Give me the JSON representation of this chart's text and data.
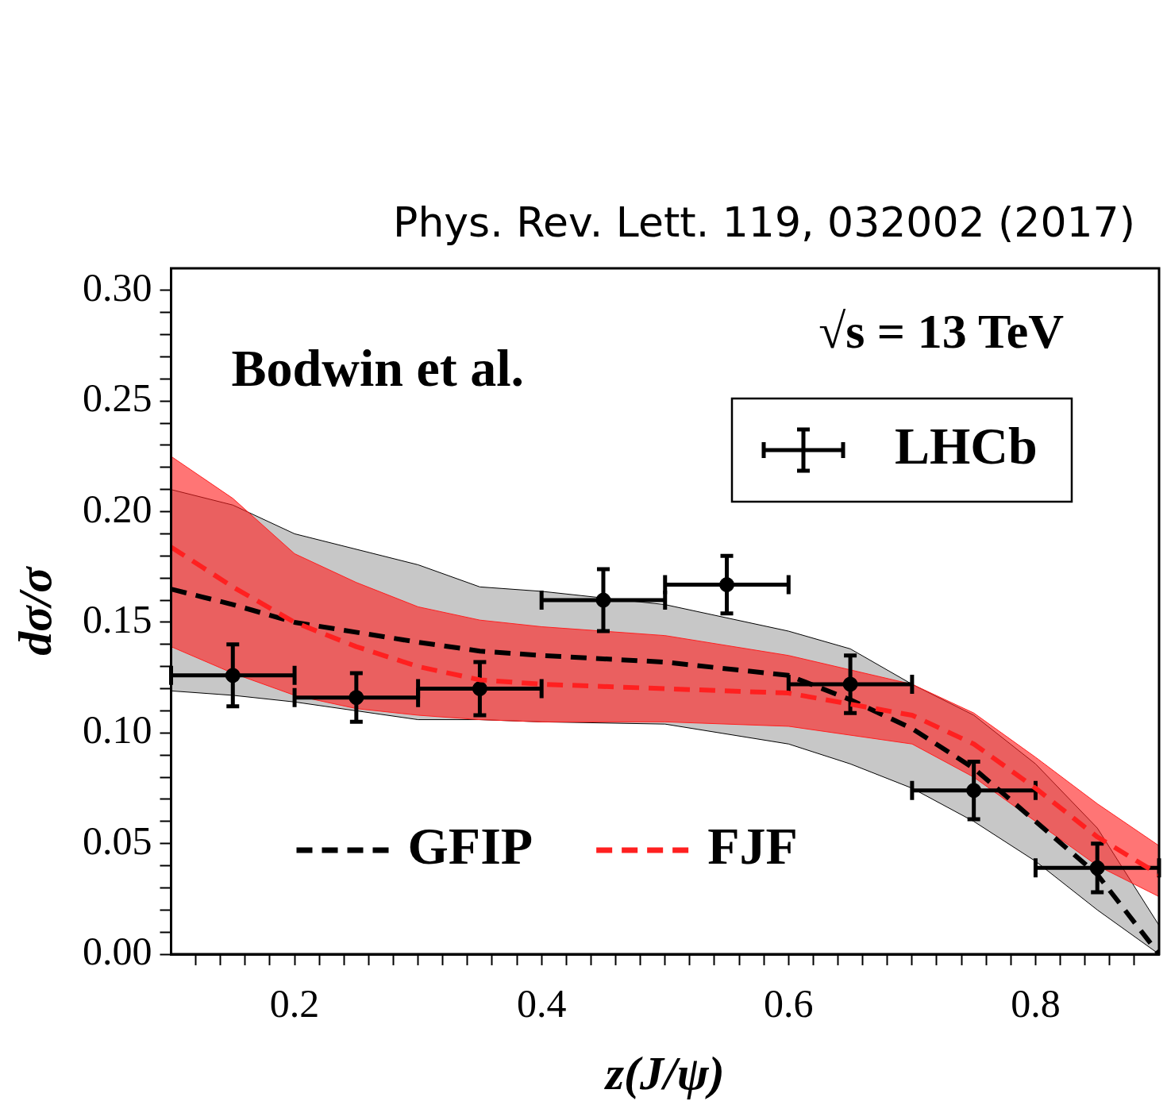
{
  "chart_data": {
    "type": "scatter",
    "xlabel": "z(J/ψ)",
    "ylabel": "dσ/σ",
    "annotations": [
      "Phys. Rev. Lett. 119, 032002 (2017)",
      "Bodwin et al.",
      "√s = 13 TeV"
    ],
    "xlim": [
      0.1,
      0.9
    ],
    "ylim": [
      0,
      0.31
    ],
    "xticks": [
      {
        "value": 0.12,
        "label": null
      },
      {
        "value": 0.14,
        "label": null
      },
      {
        "value": 0.16,
        "label": null
      },
      {
        "value": 0.18,
        "label": null
      },
      {
        "value": 0.2,
        "label": "0.2"
      },
      {
        "value": 0.22,
        "label": null
      },
      {
        "value": 0.24,
        "label": null
      },
      {
        "value": 0.26,
        "label": null
      },
      {
        "value": 0.28,
        "label": null
      },
      {
        "value": 0.3,
        "label": null
      },
      {
        "value": 0.32,
        "label": null
      },
      {
        "value": 0.34,
        "label": null
      },
      {
        "value": 0.36,
        "label": null
      },
      {
        "value": 0.38,
        "label": null
      },
      {
        "value": 0.4,
        "label": "0.4"
      },
      {
        "value": 0.42,
        "label": null
      },
      {
        "value": 0.44,
        "label": null
      },
      {
        "value": 0.46,
        "label": null
      },
      {
        "value": 0.48,
        "label": null
      },
      {
        "value": 0.5,
        "label": null
      },
      {
        "value": 0.52,
        "label": null
      },
      {
        "value": 0.54,
        "label": null
      },
      {
        "value": 0.56,
        "label": null
      },
      {
        "value": 0.58,
        "label": null
      },
      {
        "value": 0.6,
        "label": "0.6"
      },
      {
        "value": 0.62,
        "label": null
      },
      {
        "value": 0.64,
        "label": null
      },
      {
        "value": 0.66,
        "label": null
      },
      {
        "value": 0.68,
        "label": null
      },
      {
        "value": 0.7,
        "label": null
      },
      {
        "value": 0.72,
        "label": null
      },
      {
        "value": 0.74,
        "label": null
      },
      {
        "value": 0.76,
        "label": null
      },
      {
        "value": 0.78,
        "label": null
      },
      {
        "value": 0.8,
        "label": "0.8"
      },
      {
        "value": 0.82,
        "label": null
      },
      {
        "value": 0.84,
        "label": null
      },
      {
        "value": 0.86,
        "label": null
      },
      {
        "value": 0.88,
        "label": null
      }
    ],
    "yticks": [
      {
        "value": 0,
        "label": "0.00"
      },
      {
        "value": 0.01,
        "label": null
      },
      {
        "value": 0.02,
        "label": null
      },
      {
        "value": 0.03,
        "label": null
      },
      {
        "value": 0.04,
        "label": null
      },
      {
        "value": 0.05,
        "label": "0.05"
      },
      {
        "value": 0.06,
        "label": null
      },
      {
        "value": 0.07,
        "label": null
      },
      {
        "value": 0.08,
        "label": null
      },
      {
        "value": 0.09,
        "label": null
      },
      {
        "value": 0.1,
        "label": "0.10"
      },
      {
        "value": 0.11,
        "label": null
      },
      {
        "value": 0.12,
        "label": null
      },
      {
        "value": 0.13,
        "label": null
      },
      {
        "value": 0.14,
        "label": null
      },
      {
        "value": 0.15,
        "label": "0.15"
      },
      {
        "value": 0.16,
        "label": null
      },
      {
        "value": 0.17,
        "label": null
      },
      {
        "value": 0.18,
        "label": null
      },
      {
        "value": 0.19,
        "label": null
      },
      {
        "value": 0.2,
        "label": "0.20"
      },
      {
        "value": 0.21,
        "label": null
      },
      {
        "value": 0.22,
        "label": null
      },
      {
        "value": 0.23,
        "label": null
      },
      {
        "value": 0.24,
        "label": null
      },
      {
        "value": 0.25,
        "label": "0.25"
      },
      {
        "value": 0.26,
        "label": null
      },
      {
        "value": 0.27,
        "label": null
      },
      {
        "value": 0.28,
        "label": null
      },
      {
        "value": 0.29,
        "label": null
      },
      {
        "value": 0.3,
        "label": "0.30"
      }
    ],
    "legend": "bottom right",
    "series": [
      {
        "name": "GFIP",
        "type": "line",
        "color": "#000000",
        "line_style": "dashed",
        "x": [
          0.1,
          0.15,
          0.2,
          0.3,
          0.35,
          0.4,
          0.5,
          0.6,
          0.65,
          0.7,
          0.75,
          0.8,
          0.85,
          0.9
        ],
        "values": [
          0.165,
          0.158,
          0.15,
          0.141,
          0.137,
          0.135,
          0.132,
          0.126,
          0.115,
          0.102,
          0.084,
          0.06,
          0.036,
          0.0
        ],
        "upper": [
          0.21,
          0.203,
          0.19,
          0.176,
          0.166,
          0.164,
          0.158,
          0.146,
          0.138,
          0.122,
          0.108,
          0.086,
          0.057,
          0.013
        ],
        "lower": [
          0.119,
          0.117,
          0.114,
          0.106,
          0.106,
          0.105,
          0.104,
          0.095,
          0.086,
          0.075,
          0.06,
          0.042,
          0.02,
          0.0
        ]
      },
      {
        "name": "LHCb",
        "type": "scatter",
        "color": "#000000",
        "marker": "circle",
        "x": [
          0.15,
          0.25,
          0.35,
          0.45,
          0.55,
          0.65,
          0.75,
          0.85
        ],
        "values": [
          0.126,
          0.116,
          0.12,
          0.16,
          0.167,
          0.122,
          0.074,
          0.039
        ],
        "errors": [
          [
            0.112,
            0.14
          ],
          [
            0.105,
            0.127
          ],
          [
            0.108,
            0.132
          ],
          [
            0.146,
            0.174
          ],
          [
            0.154,
            0.18
          ],
          [
            0.109,
            0.135
          ],
          [
            0.061,
            0.087
          ],
          [
            0.028,
            0.05
          ]
        ],
        "xerrors": [
          0.05,
          0.05,
          0.05,
          0.05,
          0.05,
          0.05,
          0.05,
          0.05
        ]
      },
      {
        "name": "FJF",
        "type": "line",
        "color": "#ff2020",
        "line_style": "dashed",
        "x": [
          0.1,
          0.15,
          0.2,
          0.25,
          0.3,
          0.35,
          0.4,
          0.5,
          0.6,
          0.7,
          0.75,
          0.8,
          0.85,
          0.9
        ],
        "values": [
          0.184,
          0.166,
          0.15,
          0.139,
          0.13,
          0.124,
          0.122,
          0.12,
          0.118,
          0.108,
          0.095,
          0.075,
          0.053,
          0.036
        ],
        "upper": [
          0.225,
          0.206,
          0.181,
          0.168,
          0.157,
          0.151,
          0.148,
          0.144,
          0.135,
          0.122,
          0.109,
          0.089,
          0.068,
          0.049
        ],
        "lower": [
          0.139,
          0.127,
          0.117,
          0.111,
          0.108,
          0.106,
          0.105,
          0.105,
          0.103,
          0.095,
          0.08,
          0.06,
          0.04,
          0.026
        ]
      }
    ]
  }
}
